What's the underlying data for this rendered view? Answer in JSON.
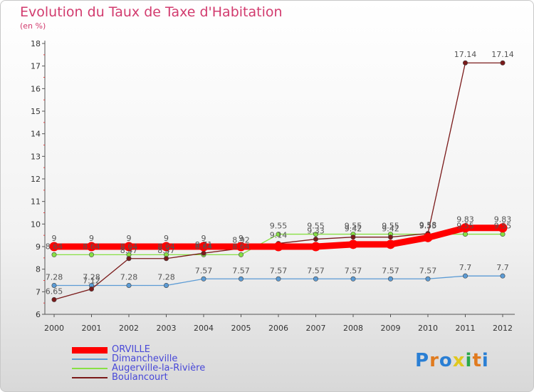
{
  "chart_data": {
    "type": "line",
    "title": "Evolution du Taux de Taxe d'Habitation",
    "subtitle": "(en %)",
    "x": [
      "2000",
      "2001",
      "2002",
      "2003",
      "2004",
      "2005",
      "2006",
      "2007",
      "2008",
      "2009",
      "2010",
      "2011",
      "2012"
    ],
    "ylim": [
      6,
      18
    ],
    "yticks": [
      6,
      7,
      8,
      9,
      10,
      11,
      12,
      13,
      14,
      15,
      16,
      17,
      18
    ],
    "grid": false,
    "legend_position": "bottom-left",
    "series": [
      {
        "name": "ORVILLE",
        "color": "#ff0000",
        "values": [
          9,
          9,
          9,
          9,
          9,
          9,
          9,
          9,
          9.1,
          9.1,
          9.4,
          9.83,
          9.83
        ],
        "labels": [
          "9",
          "9",
          "9",
          "9",
          "9",
          "9",
          "",
          "",
          "",
          "",
          "",
          "9.83",
          "9.83"
        ]
      },
      {
        "name": "Dimancheville",
        "color": "#5b9bd5",
        "values": [
          7.28,
          7.28,
          7.28,
          7.28,
          7.57,
          7.57,
          7.57,
          7.57,
          7.57,
          7.57,
          7.57,
          7.7,
          7.7
        ],
        "labels": [
          "7.28",
          "7.28",
          "7.28",
          "7.28",
          "7.57",
          "7.57",
          "7.57",
          "7.57",
          "7.57",
          "7.57",
          "7.57",
          "7.7",
          "7.7"
        ]
      },
      {
        "name": "Augerville-la-Rivière",
        "color": "#88e044",
        "values": [
          8.64,
          8.64,
          8.64,
          8.64,
          8.64,
          8.64,
          9.55,
          9.55,
          9.55,
          9.55,
          9.55,
          9.55,
          9.55
        ],
        "labels": [
          "8.64",
          "8.64",
          "8.64",
          "8.64",
          "8.64",
          "8.64",
          "9.55",
          "9.55",
          "9.55",
          "9.55",
          "9.55",
          "9.55",
          "9.55"
        ]
      },
      {
        "name": "Boulancourt",
        "color": "#7a1a1a",
        "values": [
          6.65,
          7.12,
          8.47,
          8.47,
          8.71,
          8.92,
          9.14,
          9.33,
          9.42,
          9.42,
          9.58,
          17.14,
          17.14
        ],
        "labels": [
          "6.65",
          "7.12",
          "8.47",
          "8.47",
          "8.71",
          "8.92",
          "9.14",
          "9.33",
          "9.42",
          "9.42",
          "9.58",
          "17.14",
          "17.14"
        ]
      }
    ]
  },
  "logo": {
    "text": "Proxiti"
  }
}
